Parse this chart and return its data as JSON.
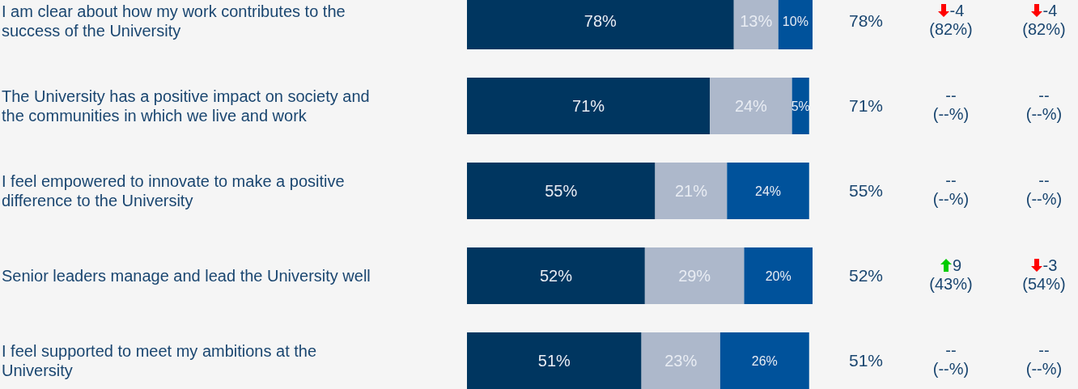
{
  "chart_data": {
    "type": "bar",
    "orientation": "horizontal",
    "stacked": true,
    "categories": [
      "I am clear about how my work contributes to the success of the University",
      "The University has a positive impact on society and the communities in which we live and work",
      "I feel empowered to innovate to make a positive difference to the University",
      "Senior leaders manage and lead the University well",
      "I feel supported to meet my ambitions at the University"
    ],
    "series": [
      {
        "color": "#003660",
        "values": [
          78,
          71,
          55,
          52,
          51
        ],
        "value_labels": [
          "78%",
          "71%",
          "55%",
          "52%",
          "51%"
        ]
      },
      {
        "color": "#adb8cb",
        "values": [
          13,
          24,
          21,
          29,
          23
        ],
        "value_labels": [
          "13%",
          "24%",
          "21%",
          "29%",
          "23%"
        ]
      },
      {
        "color": "#00529b",
        "values": [
          10,
          5,
          24,
          20,
          26
        ],
        "value_labels": [
          "10%",
          "5%",
          "24%",
          "20%",
          "26%"
        ]
      }
    ],
    "xlim": [
      0,
      101
    ],
    "tick_labels": "y",
    "annotations": [
      "78%",
      "-4",
      "(82%)",
      "-4",
      "(82%)",
      "71%",
      "--",
      "(--%)",
      "--",
      "(--%)",
      "55%",
      "--",
      "(--%)",
      "--",
      "(--%)",
      "52%",
      "9",
      "(43%)",
      "-3",
      "(54%)",
      "51%",
      "--",
      "(--%)",
      "--",
      "(--%)"
    ]
  }
}
